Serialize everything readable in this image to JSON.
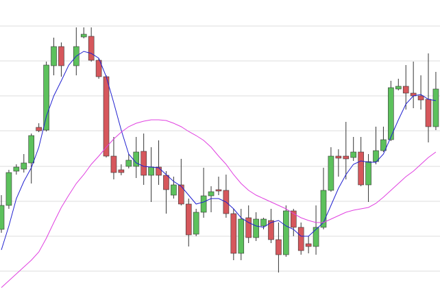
{
  "chart_data": {
    "type": "candlestick",
    "open": [
      109,
      144,
      194,
      197,
      206,
      258,
      254,
      348,
      376,
      null,
      348,
      390,
      391,
      356,
      332,
      216,
      196,
      201,
      201,
      223,
      188,
      200,
      188,
      159,
      174,
      146,
      102,
      134,
      158,
      167,
      166,
      132,
      74,
      126,
      97,
      114,
      122,
      94,
      72,
      136,
      112,
      88,
      84,
      112,
      166,
      216,
      216,
      214,
      222,
      174,
      208,
      224,
      240,
      314,
      318,
      308,
      304,
      299,
      259
    ],
    "high": [
      159,
      196,
      204,
      219,
      249,
      264,
      354,
      389,
      382,
      null,
      404,
      404,
      404,
      359,
      334,
      244,
      204,
      219,
      244,
      249,
      229,
      239,
      194,
      186,
      212,
      154,
      139,
      199,
      172,
      186,
      189,
      139,
      139,
      144,
      134,
      126,
      139,
      119,
      144,
      139,
      119,
      99,
      144,
      199,
      229,
      226,
      266,
      244,
      244,
      219,
      259,
      259,
      326,
      329,
      349,
      354,
      334,
      366,
      339
    ],
    "low": [
      104,
      139,
      189,
      192,
      176,
      251,
      252,
      334,
      332,
      null,
      334,
      388,
      354,
      329,
      214,
      182,
      188,
      198,
      184,
      174,
      149,
      174,
      132,
      154,
      144,
      84,
      99,
      126,
      134,
      159,
      126,
      64,
      64,
      89,
      92,
      109,
      89,
      46,
      69,
      99,
      72,
      74,
      72,
      109,
      164,
      186,
      182,
      209,
      172,
      149,
      204,
      222,
      238,
      312,
      284,
      286,
      284,
      236,
      254
    ],
    "close": [
      144,
      192,
      200,
      206,
      246,
      253,
      349,
      376,
      348,
      null,
      376,
      394,
      356,
      332,
      216,
      192,
      192,
      210,
      222,
      188,
      200,
      188,
      167,
      174,
      146,
      101,
      134,
      158,
      164,
      165,
      132,
      74,
      124,
      97,
      124,
      124,
      94,
      72,
      136,
      112,
      78,
      84,
      112,
      166,
      216,
      213,
      212,
      222,
      174,
      208,
      224,
      240,
      316,
      318,
      308,
      304,
      298,
      259,
      314
    ],
    "up_color": "#5cc15c",
    "down_color": "#d6575c",
    "lines": [
      {
        "color": "#1f1fd0",
        "values": [
          79,
          114,
          154,
          179,
          199,
          229,
          274,
          304,
          326,
          349,
          362,
          369,
          366,
          359,
          332,
          294,
          254,
          219,
          206,
          201,
          200,
          199,
          189,
          179,
          172,
          159,
          146,
          149,
          154,
          154,
          149,
          139,
          126,
          119,
          114,
          112,
          119,
          122,
          114,
          109,
          99,
          99,
          109,
          119,
          144,
          169,
          189,
          204,
          209,
          207,
          207,
          219,
          244,
          269,
          292,
          304,
          306,
          299,
          297
        ]
      },
      {
        "color": "#e040e0",
        "values": [
          24,
          34,
          44,
          54,
          64,
          76,
          96,
          119,
          141,
          159,
          176,
          189,
          204,
          216,
          229,
          241,
          251,
          259,
          264,
          267,
          269,
          269,
          268,
          264,
          259,
          252,
          246,
          239,
          229,
          216,
          204,
          189,
          176,
          166,
          159,
          154,
          149,
          144,
          139,
          132,
          126,
          122,
          119,
          119,
          124,
          129,
          134,
          137,
          139,
          141,
          147,
          156,
          166,
          176,
          186,
          194,
          204,
          214,
          222
        ]
      }
    ],
    "ylim": [
      0,
      444
    ],
    "yticks": [
      48,
      99,
      150,
      201,
      253,
      304,
      355,
      406
    ],
    "grid": true
  }
}
